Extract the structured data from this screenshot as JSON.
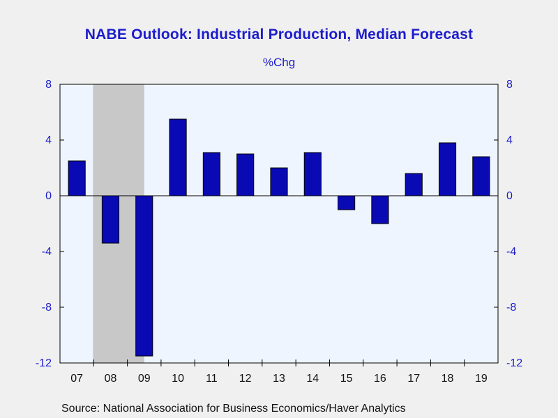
{
  "title": "NABE Outlook: Industrial Production, Median Forecast",
  "subtitle": "%Chg",
  "source": "Source:  National Association for Business Economics/Haver Analytics",
  "colors": {
    "background": "#f0f0f0",
    "plot_area": "#eef5ff",
    "bar_fill": "#0a0ab4",
    "bar_stroke": "#000000",
    "recession_shade": "#c8c8c8",
    "axis_text": "#1c1ccc",
    "title_text": "#1c1ccc"
  },
  "chart_data": {
    "type": "bar",
    "categories": [
      "07",
      "08",
      "09",
      "10",
      "11",
      "12",
      "13",
      "14",
      "15",
      "16",
      "17",
      "18",
      "19"
    ],
    "series": [
      {
        "values": [
          2.5,
          -3.4,
          -11.5,
          5.5,
          3.1,
          3.0,
          2.0,
          3.1,
          -1.0,
          -2.0,
          1.6,
          3.8,
          2.8
        ]
      }
    ],
    "ylim": [
      -12,
      8
    ],
    "yticks": [
      "8",
      "4",
      "0",
      "-4",
      "-8",
      "-12"
    ],
    "ytick_values": [
      8,
      4,
      0,
      -4,
      -8,
      -12
    ],
    "y_axis_both_sides": true,
    "shaded_range": [
      "08",
      "09"
    ],
    "zero_line": true,
    "grid": false,
    "legend": "none"
  }
}
